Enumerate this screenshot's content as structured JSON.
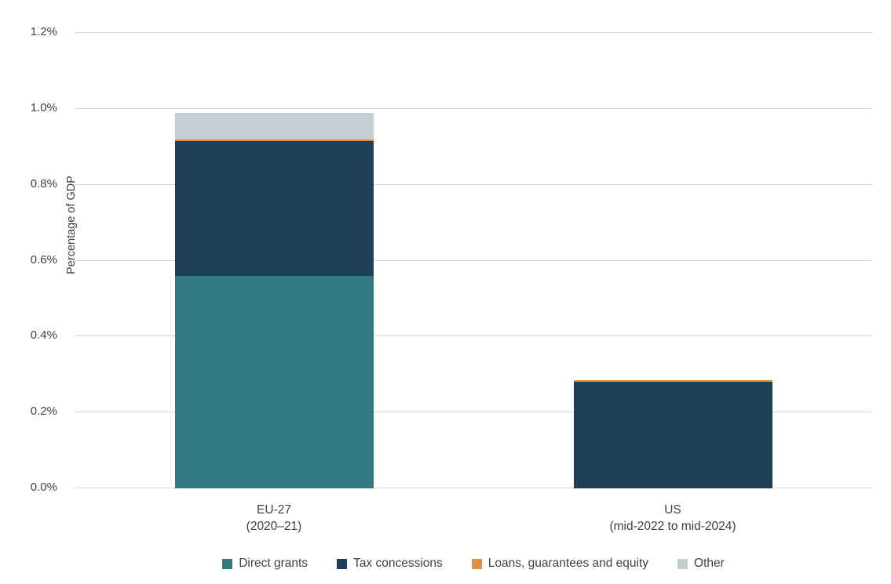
{
  "chart_data": {
    "type": "bar",
    "stacked": true,
    "title": "",
    "xlabel": "",
    "ylabel": "Percentage of GDP",
    "ylim": [
      0,
      1.2
    ],
    "grid": true,
    "legend_position": "bottom",
    "yticks": [
      {
        "value": 0.0,
        "label": "0.0%"
      },
      {
        "value": 0.2,
        "label": "0.2%"
      },
      {
        "value": 0.4,
        "label": "0.4%"
      },
      {
        "value": 0.6,
        "label": "0.6%"
      },
      {
        "value": 0.8,
        "label": "0.8%"
      },
      {
        "value": 1.0,
        "label": "1.0%"
      },
      {
        "value": 1.2,
        "label": "1.2%"
      }
    ],
    "categories": [
      {
        "line1": "EU-27",
        "line2": "(2020–21)"
      },
      {
        "line1": "US",
        "line2": "(mid-2022 to mid-2024)"
      }
    ],
    "series": [
      {
        "name": "Direct grants",
        "color": "#337A80",
        "values": [
          0.56,
          0
        ]
      },
      {
        "name": "Tax concessions",
        "color": "#1E4157",
        "values": [
          0.355,
          0.28
        ]
      },
      {
        "name": "Loans, guarantees and equity",
        "color": "#E0913D",
        "values": [
          0.005,
          0.005
        ]
      },
      {
        "name": "Other",
        "color": "#C3CED3",
        "values": [
          0.07,
          0
        ]
      }
    ],
    "totals": {
      "EU-27": 0.99,
      "US": 0.285
    },
    "colors": {
      "grid": "#D8D8D8",
      "text": "#404040",
      "background": "#FFFFFF"
    }
  }
}
